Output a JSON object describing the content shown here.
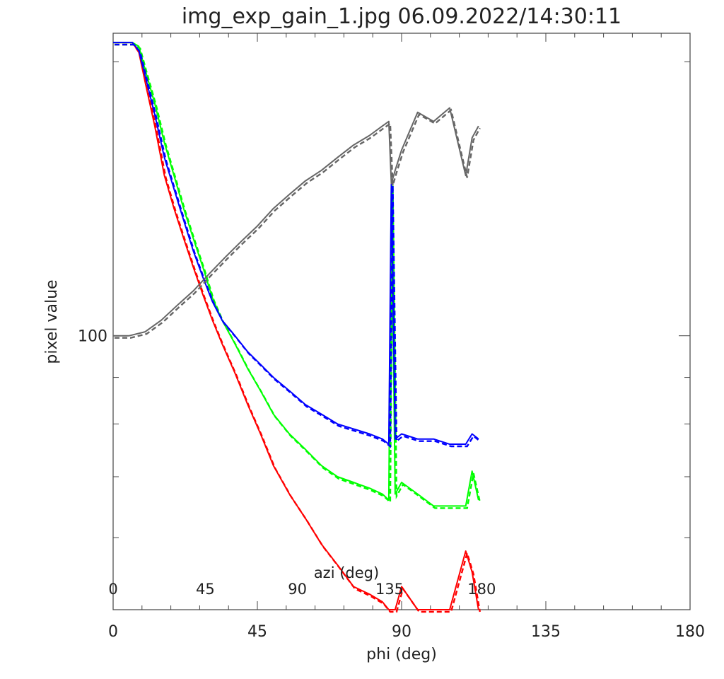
{
  "chart_data": {
    "type": "line",
    "title": "img_exp_gain_1.jpg 06.09.2022/14:30:11",
    "xlabel": "phi (deg)",
    "ylabel": "pixel value",
    "xlim": [
      0,
      180
    ],
    "ylim": [
      50,
      215
    ],
    "y_scale": "log",
    "x_ticks": [
      "0",
      "45",
      "90",
      "135",
      "180"
    ],
    "y_ticks": [
      "100"
    ],
    "grid": false,
    "legend": "none",
    "secondary_axis": {
      "label": "azi (deg)",
      "ticks": [
        "0",
        "45",
        "90",
        "135",
        "180"
      ],
      "position": "inside-bottom"
    },
    "series": [
      {
        "color": "#ff0000",
        "x": [
          0,
          6,
          8,
          10,
          13,
          16,
          19,
          22,
          25,
          28,
          31,
          34,
          38,
          42,
          46,
          50,
          55,
          60,
          65,
          70,
          75,
          80,
          84,
          86,
          88,
          90,
          95,
          100,
          105,
          110,
          112,
          114
        ],
        "y": [
          210,
          210,
          205,
          190,
          170,
          150,
          138,
          128,
          119,
          111,
          104,
          98,
          91,
          84,
          78,
          72,
          67,
          63,
          59,
          56,
          53,
          52,
          51,
          50,
          50,
          53,
          50,
          50,
          50,
          58,
          55,
          50
        ]
      },
      {
        "color": "#00ff00",
        "x": [
          0,
          6,
          8,
          10,
          13,
          16,
          19,
          22,
          25,
          28,
          31,
          34,
          38,
          42,
          46,
          50,
          55,
          60,
          65,
          70,
          75,
          80,
          84,
          86,
          86.8,
          88,
          90,
          95,
          100,
          105,
          110,
          112,
          114
        ],
        "y": [
          210,
          210,
          208,
          196,
          180,
          163,
          150,
          138,
          128,
          119,
          110,
          104,
          98,
          92,
          87,
          82,
          78,
          75,
          72,
          70,
          69,
          68,
          67,
          66,
          147,
          67,
          69,
          67,
          65,
          65,
          65,
          71,
          66
        ]
      },
      {
        "color": "#0000ff",
        "x": [
          0,
          6,
          8,
          10,
          13,
          16,
          19,
          22,
          25,
          28,
          31,
          34,
          38,
          42,
          46,
          50,
          55,
          60,
          65,
          70,
          75,
          80,
          84,
          86,
          86.8,
          88,
          90,
          95,
          100,
          105,
          110,
          112,
          114
        ],
        "y": [
          210,
          210,
          206,
          193,
          175,
          157,
          145,
          134,
          124,
          116,
          109,
          104,
          100,
          96,
          93,
          90,
          87,
          84,
          82,
          80,
          79,
          78,
          77,
          76,
          147,
          77,
          78,
          77,
          77,
          76,
          76,
          78,
          77
        ]
      },
      {
        "color": "#666666",
        "x": [
          0,
          5,
          10,
          15,
          20,
          25,
          30,
          35,
          40,
          45,
          50,
          55,
          60,
          65,
          70,
          75,
          80,
          84,
          86,
          86.8,
          88,
          90,
          95,
          100,
          105,
          110,
          112,
          114
        ],
        "y": [
          100,
          100,
          101,
          104,
          108,
          112,
          117,
          122,
          127,
          132,
          138,
          143,
          148,
          152,
          157,
          162,
          166,
          170,
          172,
          147,
          152,
          160,
          176,
          172,
          178,
          150,
          165,
          170
        ]
      }
    ]
  }
}
